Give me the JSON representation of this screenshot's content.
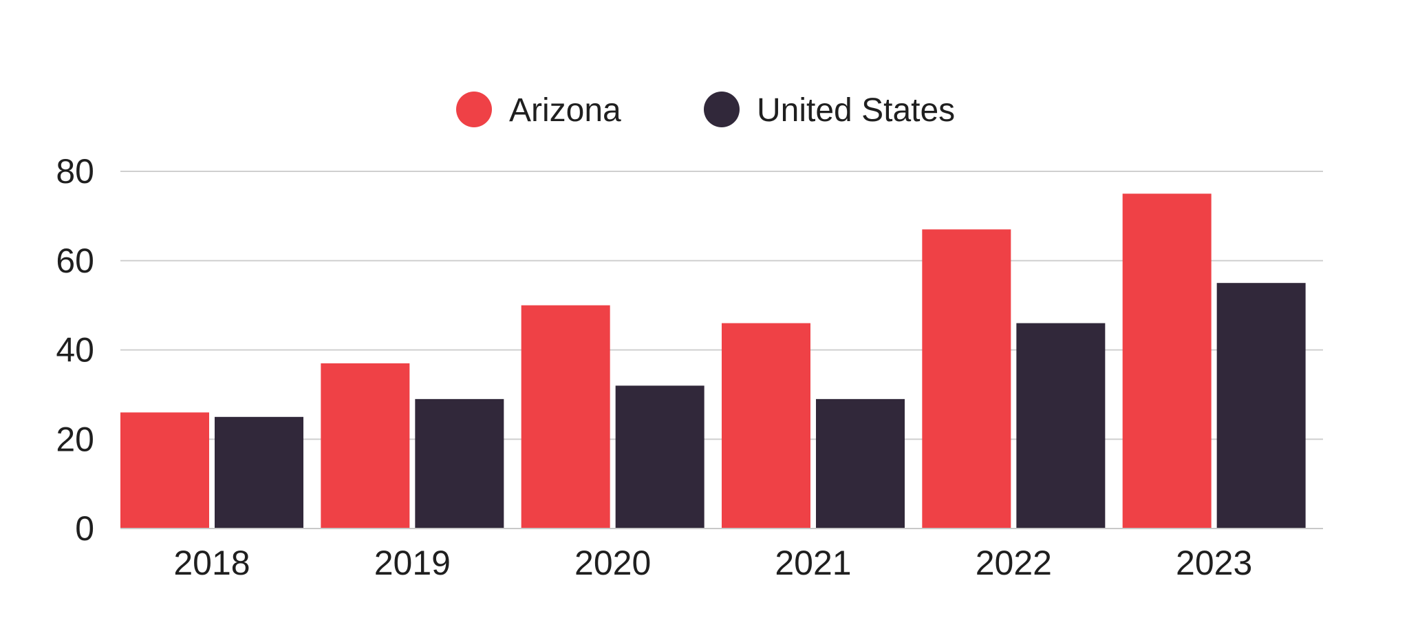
{
  "chart_data": {
    "type": "bar",
    "categories": [
      "2018",
      "2019",
      "2020",
      "2021",
      "2022",
      "2023"
    ],
    "series": [
      {
        "name": "Arizona",
        "color": "#ef4146",
        "values": [
          26,
          37,
          50,
          46,
          67,
          75
        ]
      },
      {
        "name": "United States",
        "color": "#31283a",
        "values": [
          25,
          29,
          32,
          29,
          46,
          55
        ]
      }
    ],
    "ylim": [
      0,
      80
    ],
    "yticks": [
      "0",
      "20",
      "40",
      "60",
      "80"
    ],
    "grid": true,
    "legend_position": "top-center",
    "xlabel": "",
    "ylabel": "",
    "title": ""
  }
}
